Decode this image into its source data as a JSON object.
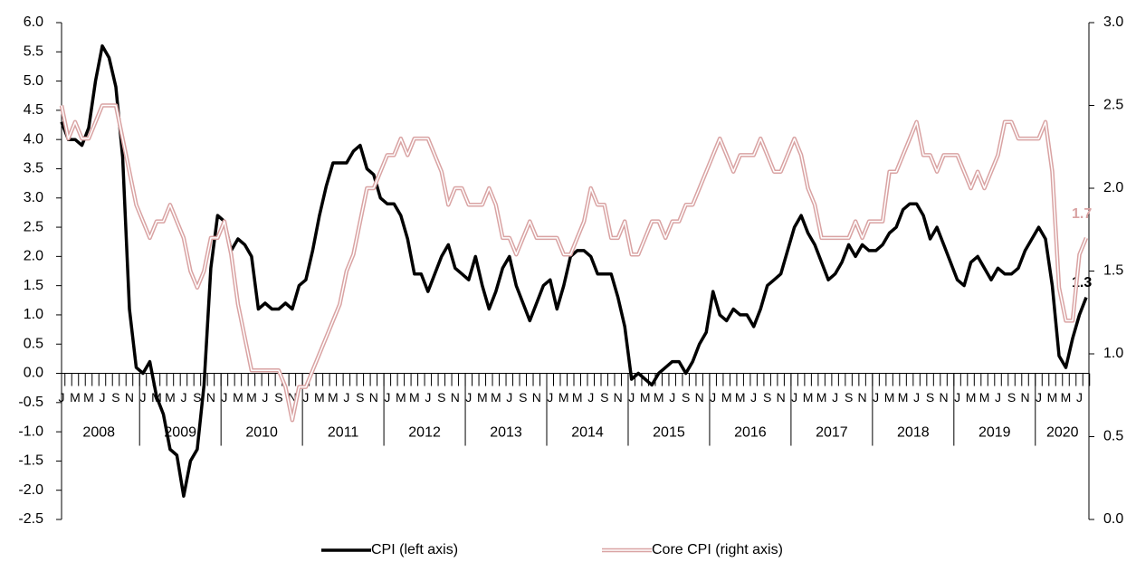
{
  "chart_data": {
    "type": "line",
    "categories": [
      "J",
      null,
      "M",
      null,
      "M",
      null,
      "J",
      null,
      "S",
      null,
      "N",
      null,
      "J",
      null,
      "M",
      null,
      "M",
      null,
      "J",
      null,
      "S",
      null,
      "N",
      null,
      "J",
      null,
      "M",
      null,
      "M",
      null,
      "J",
      null,
      "S",
      null,
      "N",
      null,
      "J",
      null,
      "M",
      null,
      "M",
      null,
      "J",
      null,
      "S",
      null,
      "N",
      null,
      "J",
      null,
      "M",
      null,
      "M",
      null,
      "J",
      null,
      "S",
      null,
      "N",
      null,
      "J",
      null,
      "M",
      null,
      "M",
      null,
      "J",
      null,
      "S",
      null,
      "N",
      null,
      "J",
      null,
      "M",
      null,
      "M",
      null,
      "J",
      null,
      "S",
      null,
      "N",
      null,
      "J",
      null,
      "M",
      null,
      "M",
      null,
      "J",
      null,
      "S",
      null,
      "N",
      null,
      "J",
      null,
      "M",
      null,
      "M",
      null,
      "J",
      null,
      "S",
      null,
      "N",
      null,
      "J",
      null,
      "M",
      null,
      "M",
      null,
      "J",
      null,
      "S",
      null,
      "N",
      null,
      "J",
      null,
      "M",
      null,
      "M",
      null,
      "J",
      null,
      "S",
      null,
      "N",
      null,
      "J",
      null,
      "M",
      null,
      "M",
      null,
      "J",
      null,
      "S",
      null,
      "N",
      null,
      "J",
      null,
      "M",
      null,
      "M",
      null,
      "J",
      null
    ],
    "year_groups": [
      "2008",
      "2009",
      "2010",
      "2011",
      "2012",
      "2013",
      "2014",
      "2015",
      "2016",
      "2017",
      "2018",
      "2019",
      "2020"
    ],
    "series": [
      {
        "name": "CPI (left axis)",
        "color": "#000000",
        "axis": "y",
        "values": [
          4.3,
          4.0,
          4.0,
          3.9,
          4.2,
          5.0,
          5.6,
          5.4,
          4.9,
          3.7,
          1.1,
          0.1,
          0.0,
          0.2,
          -0.4,
          -0.7,
          -1.3,
          -1.4,
          -2.1,
          -1.5,
          -1.3,
          -0.2,
          1.8,
          2.7,
          2.6,
          2.1,
          2.3,
          2.2,
          2.0,
          1.1,
          1.2,
          1.1,
          1.1,
          1.2,
          1.1,
          1.5,
          1.6,
          2.1,
          2.7,
          3.2,
          3.6,
          3.6,
          3.6,
          3.8,
          3.9,
          3.5,
          3.4,
          3.0,
          2.9,
          2.9,
          2.7,
          2.3,
          1.7,
          1.7,
          1.4,
          1.7,
          2.0,
          2.2,
          1.8,
          1.7,
          1.6,
          2.0,
          1.5,
          1.1,
          1.4,
          1.8,
          2.0,
          1.5,
          1.2,
          0.9,
          1.2,
          1.5,
          1.6,
          1.1,
          1.5,
          2.0,
          2.1,
          2.1,
          2.0,
          1.7,
          1.7,
          1.7,
          1.3,
          0.8,
          -0.1,
          0.0,
          -0.1,
          -0.2,
          0.0,
          0.1,
          0.2,
          0.2,
          0.0,
          0.2,
          0.5,
          0.7,
          1.4,
          1.0,
          0.9,
          1.1,
          1.0,
          1.0,
          0.8,
          1.1,
          1.5,
          1.6,
          1.7,
          2.1,
          2.5,
          2.7,
          2.4,
          2.2,
          1.9,
          1.6,
          1.7,
          1.9,
          2.2,
          2.0,
          2.2,
          2.1,
          2.1,
          2.2,
          2.4,
          2.5,
          2.8,
          2.9,
          2.9,
          2.7,
          2.3,
          2.5,
          2.2,
          1.9,
          1.6,
          1.5,
          1.9,
          2.0,
          1.8,
          1.6,
          1.8,
          1.7,
          1.7,
          1.8,
          2.1,
          2.3,
          2.5,
          2.3,
          1.5,
          0.3,
          0.1,
          0.6,
          1.0,
          1.3
        ]
      },
      {
        "name": "Core CPI (right axis)",
        "color": "#d9a3a3",
        "axis": "y2",
        "values": [
          2.5,
          2.3,
          2.4,
          2.3,
          2.3,
          2.4,
          2.5,
          2.5,
          2.5,
          2.3,
          2.1,
          1.9,
          1.8,
          1.7,
          1.8,
          1.8,
          1.9,
          1.8,
          1.7,
          1.5,
          1.4,
          1.5,
          1.7,
          1.7,
          1.8,
          1.6,
          1.3,
          1.1,
          0.9,
          0.9,
          0.9,
          0.9,
          0.9,
          0.8,
          0.6,
          0.8,
          0.8,
          0.9,
          1.0,
          1.1,
          1.2,
          1.3,
          1.5,
          1.6,
          1.8,
          2.0,
          2.0,
          2.1,
          2.2,
          2.2,
          2.3,
          2.2,
          2.3,
          2.3,
          2.3,
          2.2,
          2.1,
          1.9,
          2.0,
          2.0,
          1.9,
          1.9,
          1.9,
          2.0,
          1.9,
          1.7,
          1.7,
          1.6,
          1.7,
          1.8,
          1.7,
          1.7,
          1.7,
          1.7,
          1.6,
          1.6,
          1.7,
          1.8,
          2.0,
          1.9,
          1.9,
          1.7,
          1.7,
          1.8,
          1.6,
          1.6,
          1.7,
          1.8,
          1.8,
          1.7,
          1.8,
          1.8,
          1.9,
          1.9,
          2.0,
          2.1,
          2.2,
          2.3,
          2.2,
          2.1,
          2.2,
          2.2,
          2.2,
          2.3,
          2.2,
          2.1,
          2.1,
          2.2,
          2.3,
          2.2,
          2.0,
          1.9,
          1.7,
          1.7,
          1.7,
          1.7,
          1.7,
          1.8,
          1.7,
          1.8,
          1.8,
          1.8,
          2.1,
          2.1,
          2.2,
          2.3,
          2.4,
          2.2,
          2.2,
          2.1,
          2.2,
          2.2,
          2.2,
          2.1,
          2.0,
          2.1,
          2.0,
          2.1,
          2.2,
          2.4,
          2.4,
          2.3,
          2.3,
          2.3,
          2.3,
          2.4,
          2.1,
          1.4,
          1.2,
          1.2,
          1.6,
          1.7
        ]
      }
    ],
    "ylim": [
      -2.5,
      6.0
    ],
    "yticks": [
      {
        "value": -2.5,
        "label": "-2.5"
      },
      {
        "value": -2.0,
        "label": "-2.0"
      },
      {
        "value": -1.5,
        "label": "-1.5"
      },
      {
        "value": -1.0,
        "label": "-1.0"
      },
      {
        "value": -0.5,
        "label": "-0.5"
      },
      {
        "value": 0,
        "label": "0.0"
      },
      0.5,
      {
        "value": 1,
        "label": "1.0"
      },
      1.5,
      {
        "value": 2,
        "label": "2.0"
      },
      2.5,
      {
        "value": 3,
        "label": "3.0"
      },
      3.5,
      {
        "value": 4,
        "label": "4.0"
      },
      4.5,
      {
        "value": 5,
        "label": "5.0"
      },
      5.5,
      {
        "value": 6,
        "label": "6.0"
      }
    ],
    "y2lim": [
      0.0,
      3.0
    ],
    "y2ticks": [
      {
        "value": 0,
        "label": "0.0"
      },
      0.5,
      {
        "value": 1,
        "label": "1.0"
      },
      1.5,
      {
        "value": 2,
        "label": "2.0"
      },
      2.5,
      {
        "value": 3,
        "label": "3.0"
      }
    ],
    "legend": "bottom"
  }
}
